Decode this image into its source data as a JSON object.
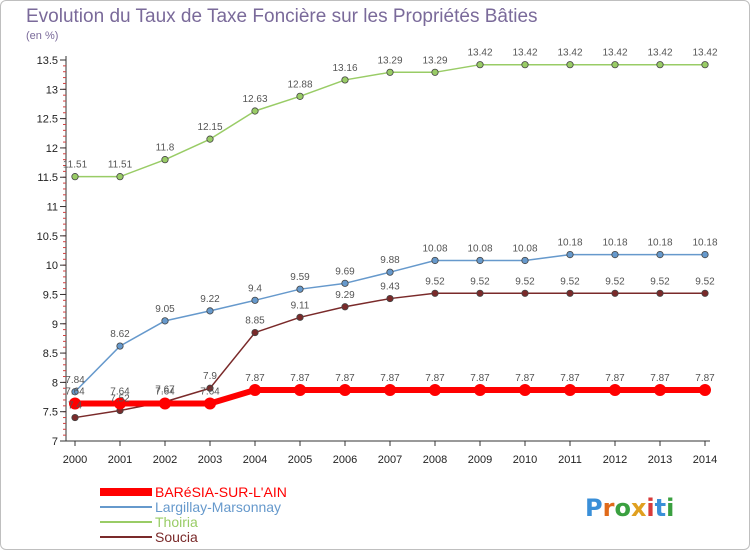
{
  "chart_data": {
    "type": "line",
    "title": "Evolution du Taux de Taxe Foncière sur les Propriétés Bâties",
    "unit_label": "(en %)",
    "x": [
      "2000",
      "2001",
      "2002",
      "2003",
      "2004",
      "2005",
      "2006",
      "2007",
      "2008",
      "2009",
      "2010",
      "2011",
      "2012",
      "2013",
      "2014"
    ],
    "ylim": [
      7,
      13.5
    ],
    "yticks": [
      "7",
      "7.5",
      "8",
      "8.5",
      "9",
      "9.5",
      "10",
      "10.5",
      "11",
      "11.5",
      "12",
      "12.5",
      "13",
      "13.5"
    ],
    "grid": false,
    "legend_position": "bottom-left",
    "series": [
      {
        "name": "BARéSIA-SUR-L'AIN",
        "color": "#ff0000",
        "values": [
          7.64,
          7.64,
          7.64,
          7.64,
          7.87,
          7.87,
          7.87,
          7.87,
          7.87,
          7.87,
          7.87,
          7.87,
          7.87,
          7.87,
          7.87
        ],
        "labels": [
          "7.64",
          "7.64",
          "7.64",
          "7.64",
          "7.87",
          "7.87",
          "7.87",
          "7.87",
          "7.87",
          "7.87",
          "7.87",
          "7.87",
          "7.87",
          "7.87",
          "7.87"
        ]
      },
      {
        "name": "Largillay-Marsonnay",
        "color": "#6699cc",
        "values": [
          7.84,
          8.62,
          9.05,
          9.22,
          9.4,
          9.59,
          9.69,
          9.88,
          10.08,
          10.08,
          10.08,
          10.18,
          10.18,
          10.18,
          10.18
        ],
        "labels": [
          "7.84",
          "8.62",
          "9.05",
          "9.22",
          "9.4",
          "9.59",
          "9.69",
          "9.88",
          "10.08",
          "10.08",
          "10.08",
          "10.18",
          "10.18",
          "10.18",
          "10.18"
        ]
      },
      {
        "name": "Thoiria",
        "color": "#99cc66",
        "values": [
          11.51,
          11.51,
          11.8,
          12.15,
          12.63,
          12.88,
          13.16,
          13.29,
          13.29,
          13.42,
          13.42,
          13.42,
          13.42,
          13.42,
          13.42
        ],
        "labels": [
          "11.51",
          "11.51",
          "11.8",
          "12.15",
          "12.63",
          "12.88",
          "13.16",
          "13.29",
          "13.29",
          "13.42",
          "13.42",
          "13.42",
          "13.42",
          "13.42",
          "13.42"
        ]
      },
      {
        "name": "Soucia",
        "color": "#7a2a2a",
        "values": [
          7.4,
          7.52,
          7.67,
          7.9,
          8.85,
          9.11,
          9.29,
          9.43,
          9.52,
          9.52,
          9.52,
          9.52,
          9.52,
          9.52,
          9.52
        ],
        "labels": [
          "7.4",
          "7.52",
          "7.67",
          "7.9",
          "8.85",
          "9.11",
          "9.29",
          "9.43",
          "9.52",
          "9.52",
          "9.52",
          "9.52",
          "9.52",
          "9.52",
          "9.52"
        ]
      }
    ]
  },
  "logo": {
    "text": "Proxiti"
  }
}
